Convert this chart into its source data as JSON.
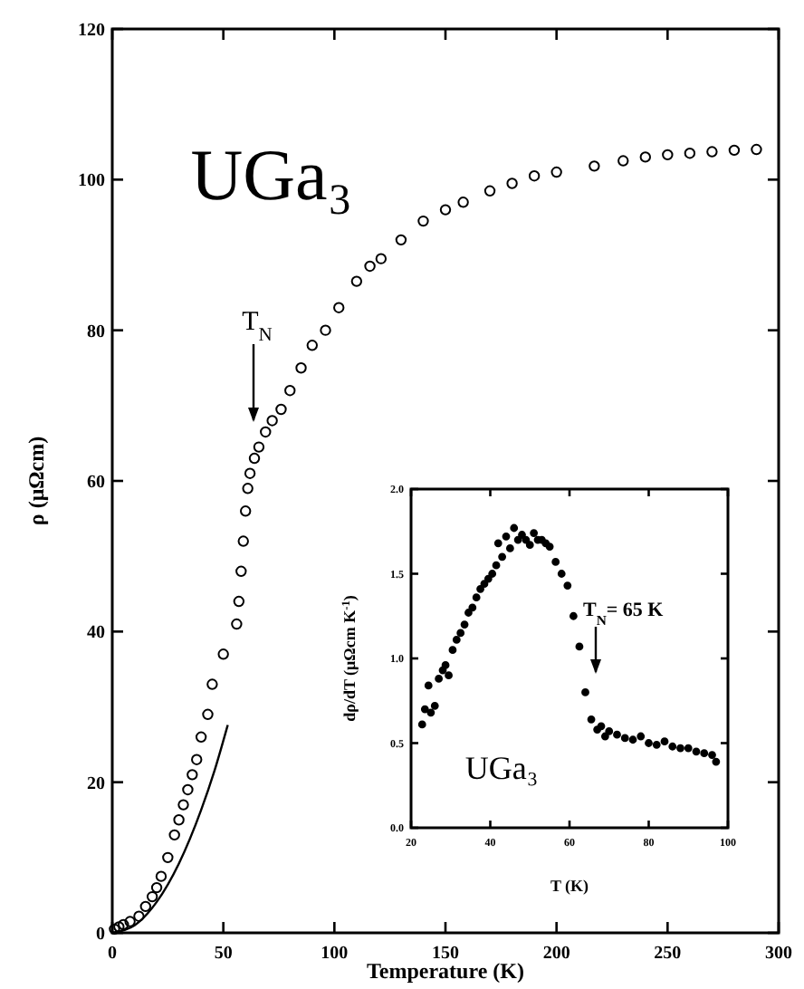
{
  "chart_data": [
    {
      "type": "scatter",
      "xlabel": "Temperature (K)",
      "ylabel": "ρ (μΩcm)",
      "xlim": [
        0,
        300
      ],
      "xticks": [
        0,
        50,
        100,
        150,
        200,
        250,
        300
      ],
      "ylim": [
        0,
        120
      ],
      "yticks": [
        0,
        20,
        40,
        60,
        80,
        100,
        120
      ],
      "grid": false,
      "annotations": [
        "UGa₃",
        "T$_{N}$"
      ],
      "series": [
        {
          "color": "#000000",
          "marker": "circle",
          "x": [
            1,
            3,
            5,
            8,
            12,
            15,
            18,
            20,
            22,
            25,
            28,
            30,
            32,
            34,
            36,
            38,
            40,
            43,
            45,
            50,
            56,
            57,
            58,
            59,
            60,
            61,
            62,
            64,
            66,
            69,
            72,
            76,
            80,
            85,
            90,
            96,
            102,
            110,
            116,
            121,
            130,
            140,
            150,
            158,
            170,
            180,
            190,
            200,
            217,
            230,
            240,
            250,
            260,
            270,
            280,
            290
          ],
          "values": [
            0.5,
            0.8,
            1.1,
            1.5,
            2.2,
            3.5,
            4.8,
            6,
            7.5,
            10,
            13,
            15,
            17,
            19,
            21,
            23,
            26,
            29,
            33,
            37,
            41,
            44,
            48,
            52,
            56,
            59,
            61,
            63,
            64.5,
            66.5,
            68,
            69.5,
            72,
            75,
            78,
            80,
            83,
            86.5,
            88.5,
            89.5,
            92,
            94.5,
            96,
            97,
            98.5,
            99.5,
            100.5,
            101,
            101.8,
            102.5,
            103,
            103.3,
            103.5,
            103.7,
            103.9,
            104
          ]
        },
        {
          "type": "line",
          "color": "#000000",
          "x": [
            0,
            10,
            20,
            30,
            40,
            46,
            52
          ],
          "values": [
            0,
            1,
            4.1,
            9.2,
            16.3,
            21.5,
            27.6
          ]
        }
      ]
    },
    {
      "type": "scatter",
      "xlabel": "T (K)",
      "ylabel": "dρ/dT (μΩcm K$^{-1}$)",
      "xlim": [
        20,
        100
      ],
      "xticks": [
        20,
        40,
        60,
        80,
        100
      ],
      "ylim": [
        0,
        2
      ],
      "yticks": [
        {
          "value": 0,
          "label": "0.0"
        },
        {
          "value": 0.5,
          "label": "0.5"
        },
        {
          "value": 1,
          "label": "1.0"
        },
        {
          "value": 1.5,
          "label": "1.5"
        },
        {
          "value": 2,
          "label": "2.0"
        }
      ],
      "grid": false,
      "marker": "circle",
      "annotations": [
        "UGa₃",
        "T$_{N}$= 65 K"
      ],
      "series": [
        {
          "color": "#000000",
          "x": [
            22.8,
            23.5,
            24.4,
            25,
            26,
            27,
            28,
            28.7,
            29.5,
            30.5,
            31.5,
            32.5,
            33.5,
            34.5,
            35.5,
            36.5,
            37.5,
            38.5,
            39.5,
            40.5,
            41.5,
            42,
            43,
            44,
            45,
            46,
            47,
            48,
            49,
            50,
            51,
            52,
            53,
            54,
            55,
            56.5,
            58,
            59.5,
            61,
            62.5,
            64,
            65.5,
            67,
            68,
            69,
            70,
            72,
            74,
            76,
            78,
            80,
            82,
            84,
            86,
            88,
            90,
            92,
            94,
            96,
            97
          ],
          "values": [
            0.61,
            0.7,
            0.84,
            0.68,
            0.72,
            0.88,
            0.93,
            0.96,
            0.9,
            1.05,
            1.11,
            1.15,
            1.2,
            1.27,
            1.3,
            1.36,
            1.41,
            1.44,
            1.47,
            1.5,
            1.55,
            1.68,
            1.6,
            1.72,
            1.65,
            1.77,
            1.7,
            1.73,
            1.7,
            1.67,
            1.74,
            1.7,
            1.7,
            1.68,
            1.66,
            1.57,
            1.5,
            1.43,
            1.25,
            1.07,
            0.8,
            0.64,
            0.58,
            0.6,
            0.54,
            0.57,
            0.55,
            0.53,
            0.52,
            0.54,
            0.5,
            0.49,
            0.51,
            0.48,
            0.47,
            0.47,
            0.45,
            0.44,
            0.43,
            0.39
          ]
        }
      ]
    }
  ]
}
